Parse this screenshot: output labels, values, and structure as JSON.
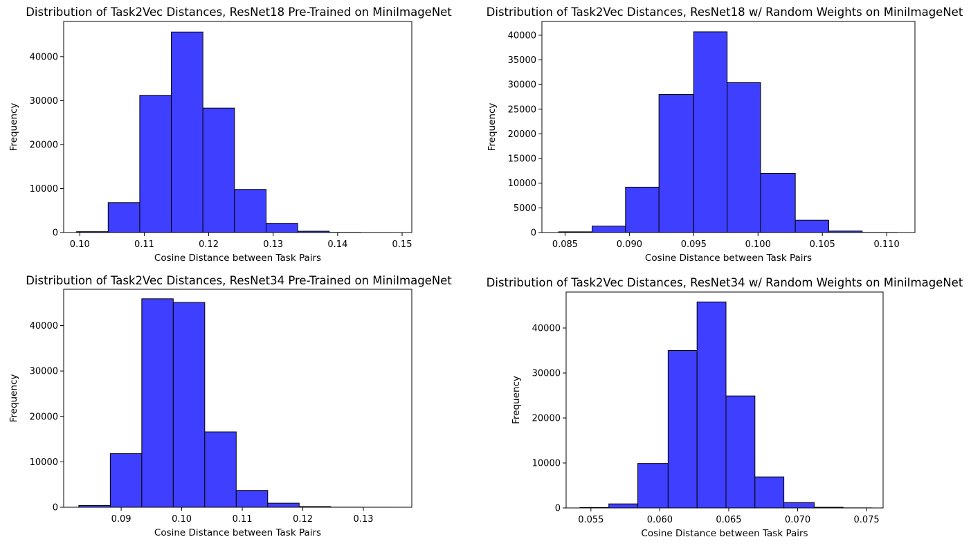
{
  "chart_data": [
    {
      "type": "bar",
      "title": "Distribution of Task2Vec Distances, ResNet18 Pre-Trained on MiniImageNet",
      "xlabel": "Cosine Distance between Task Pairs",
      "ylabel": "Frequency",
      "bar_color": "#3f3fff",
      "xlim": [
        0.0975,
        0.1515
      ],
      "ylim": [
        0,
        48000
      ],
      "xticks": [
        "0.10",
        "0.11",
        "0.12",
        "0.13",
        "0.14",
        "0.15"
      ],
      "yticks": [
        "0",
        "10000",
        "20000",
        "30000",
        "40000"
      ],
      "bins": [
        {
          "x0": 0.0995,
          "x1": 0.1044,
          "value": 200
        },
        {
          "x0": 0.1044,
          "x1": 0.1093,
          "value": 6800
        },
        {
          "x0": 0.1093,
          "x1": 0.1142,
          "value": 31200
        },
        {
          "x0": 0.1142,
          "x1": 0.1191,
          "value": 45600
        },
        {
          "x0": 0.1191,
          "x1": 0.124,
          "value": 28300
        },
        {
          "x0": 0.124,
          "x1": 0.1289,
          "value": 9800
        },
        {
          "x0": 0.1289,
          "x1": 0.1338,
          "value": 2100
        },
        {
          "x0": 0.1338,
          "x1": 0.1387,
          "value": 300
        },
        {
          "x0": 0.1387,
          "x1": 0.1436,
          "value": 30
        },
        {
          "x0": 0.1436,
          "x1": 0.1485,
          "value": 5
        }
      ]
    },
    {
      "type": "bar",
      "title": "Distribution of Task2Vec Distances, ResNet18 w/ Random Weights on MiniImageNet",
      "xlabel": "Cosine Distance between Task Pairs",
      "ylabel": "Frequency",
      "bar_color": "#3f3fff",
      "xlim": [
        0.0832,
        0.1122
      ],
      "ylim": [
        0,
        42800
      ],
      "xticks": [
        "0.085",
        "0.090",
        "0.095",
        "0.100",
        "0.105",
        "0.110"
      ],
      "yticks": [
        "0",
        "5000",
        "10000",
        "15000",
        "20000",
        "25000",
        "30000",
        "35000",
        "40000"
      ],
      "bins": [
        {
          "x0": 0.0845,
          "x1": 0.0871,
          "value": 150
        },
        {
          "x0": 0.0871,
          "x1": 0.0897,
          "value": 1300
        },
        {
          "x0": 0.0897,
          "x1": 0.0923,
          "value": 9200
        },
        {
          "x0": 0.0923,
          "x1": 0.095,
          "value": 28000
        },
        {
          "x0": 0.095,
          "x1": 0.0976,
          "value": 40700
        },
        {
          "x0": 0.0976,
          "x1": 0.1002,
          "value": 30400
        },
        {
          "x0": 0.1002,
          "x1": 0.1029,
          "value": 12000
        },
        {
          "x0": 0.1029,
          "x1": 0.1055,
          "value": 2500
        },
        {
          "x0": 0.1055,
          "x1": 0.1081,
          "value": 300
        },
        {
          "x0": 0.1081,
          "x1": 0.1108,
          "value": 20
        }
      ]
    },
    {
      "type": "bar",
      "title": "Distribution of Task2Vec Distances, ResNet34 Pre-Trained on MiniImageNet",
      "xlabel": "Cosine Distance between Task Pairs",
      "ylabel": "Frequency",
      "bar_color": "#3f3fff",
      "xlim": [
        0.0805,
        0.138
      ],
      "ylim": [
        0,
        48000
      ],
      "xticks": [
        "0.09",
        "0.10",
        "0.11",
        "0.12",
        "0.13"
      ],
      "yticks": [
        "0",
        "10000",
        "20000",
        "30000",
        "40000"
      ],
      "bins": [
        {
          "x0": 0.083,
          "x1": 0.0882,
          "value": 400
        },
        {
          "x0": 0.0882,
          "x1": 0.0934,
          "value": 11800
        },
        {
          "x0": 0.0934,
          "x1": 0.0986,
          "value": 45900
        },
        {
          "x0": 0.0986,
          "x1": 0.1038,
          "value": 45100
        },
        {
          "x0": 0.1038,
          "x1": 0.109,
          "value": 16600
        },
        {
          "x0": 0.109,
          "x1": 0.1142,
          "value": 3700
        },
        {
          "x0": 0.1142,
          "x1": 0.1194,
          "value": 900
        },
        {
          "x0": 0.1194,
          "x1": 0.1246,
          "value": 150
        },
        {
          "x0": 0.1246,
          "x1": 0.1298,
          "value": 20
        },
        {
          "x0": 0.1298,
          "x1": 0.135,
          "value": 5
        }
      ]
    },
    {
      "type": "bar",
      "title": "Distribution of Task2Vec Distances, ResNet34 w/ Random Weights on MiniImageNet",
      "xlabel": "Cosine Distance between Task Pairs",
      "ylabel": "Frequency",
      "bar_color": "#3f3fff",
      "xlim": [
        0.0532,
        0.0762
      ],
      "ylim": [
        0,
        48000
      ],
      "xticks": [
        "0.055",
        "0.060",
        "0.065",
        "0.070",
        "0.075"
      ],
      "yticks": [
        "0",
        "10000",
        "20000",
        "30000",
        "40000"
      ],
      "bins": [
        {
          "x0": 0.0542,
          "x1": 0.0563,
          "value": 100
        },
        {
          "x0": 0.0563,
          "x1": 0.0584,
          "value": 900
        },
        {
          "x0": 0.0584,
          "x1": 0.0606,
          "value": 9900
        },
        {
          "x0": 0.0606,
          "x1": 0.0627,
          "value": 35000
        },
        {
          "x0": 0.0627,
          "x1": 0.0648,
          "value": 45800
        },
        {
          "x0": 0.0648,
          "x1": 0.0669,
          "value": 24900
        },
        {
          "x0": 0.0669,
          "x1": 0.069,
          "value": 6900
        },
        {
          "x0": 0.069,
          "x1": 0.0712,
          "value": 1200
        },
        {
          "x0": 0.0712,
          "x1": 0.0733,
          "value": 150
        },
        {
          "x0": 0.0733,
          "x1": 0.0754,
          "value": 20
        }
      ]
    }
  ]
}
